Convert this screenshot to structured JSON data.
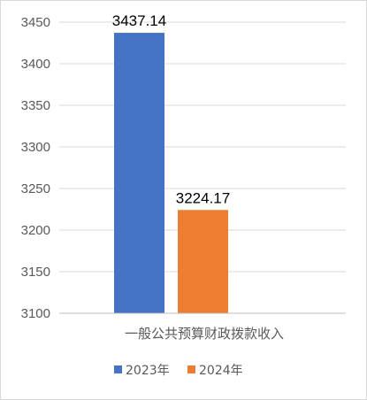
{
  "chart_data": {
    "type": "bar",
    "categories": [
      "一般公共预算财政拨款收入"
    ],
    "series": [
      {
        "name": "2023年",
        "values": [
          3437.14
        ],
        "color": "#4472C4"
      },
      {
        "name": "2024年",
        "values": [
          3224.17
        ],
        "color": "#ED7D31"
      }
    ],
    "ylim": [
      3100,
      3450
    ],
    "yticks": [
      3100,
      3150,
      3200,
      3250,
      3300,
      3350,
      3400,
      3450
    ],
    "data_labels": [
      "3437.14",
      "3224.17"
    ],
    "grid": true,
    "legend_position": "bottom"
  },
  "colors": {
    "grid": "#d9d9d9",
    "axis": "#bfbfbf",
    "frame": "#d9d9d9"
  }
}
